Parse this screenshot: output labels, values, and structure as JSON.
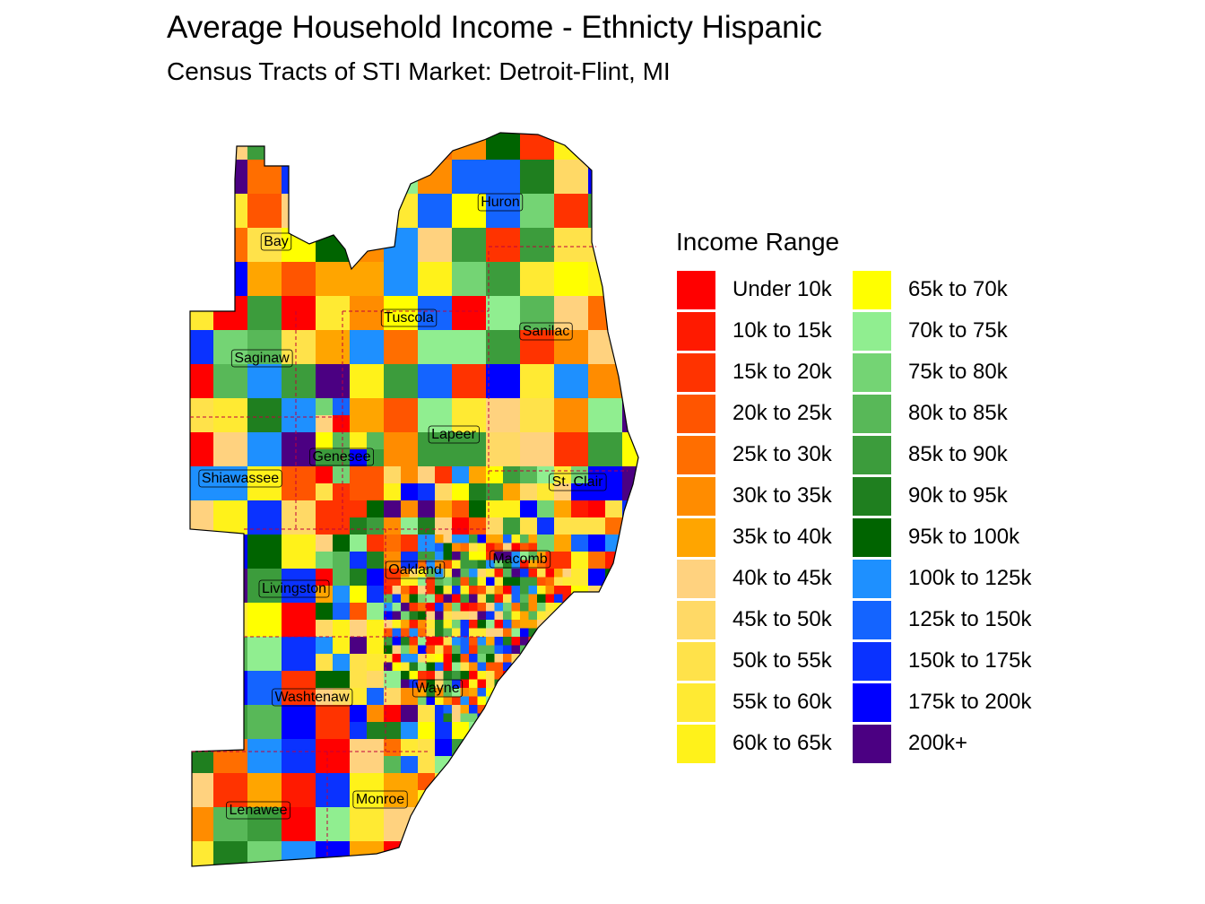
{
  "title": "Average Household Income - Ethnicty Hispanic",
  "subtitle": "Census Tracts of STI Market: Detroit-Flint, MI",
  "legend": {
    "title": "Income Range",
    "items": [
      {
        "label": "Under 10k",
        "color": "#FF0000"
      },
      {
        "label": "10k to 15k",
        "color": "#FF1A00"
      },
      {
        "label": "15k to 20k",
        "color": "#FF3300"
      },
      {
        "label": "20k to 25k",
        "color": "#FF5500"
      },
      {
        "label": "25k to 30k",
        "color": "#FF6E00"
      },
      {
        "label": "30k to 35k",
        "color": "#FF8C00"
      },
      {
        "label": "35k to 40k",
        "color": "#FFA500"
      },
      {
        "label": "40k to 45k",
        "color": "#FFD27F"
      },
      {
        "label": "45k to 50k",
        "color": "#FFD966"
      },
      {
        "label": "50k to 55k",
        "color": "#FFE24A"
      },
      {
        "label": "55k to 60k",
        "color": "#FFEA33"
      },
      {
        "label": "60k to 65k",
        "color": "#FFF21A"
      },
      {
        "label": "65k to 70k",
        "color": "#FFFF00"
      },
      {
        "label": "70k to 75k",
        "color": "#90EE90"
      },
      {
        "label": "75k to 80k",
        "color": "#74D474"
      },
      {
        "label": "80k to 85k",
        "color": "#58B858"
      },
      {
        "label": "85k to 90k",
        "color": "#3C9C3C"
      },
      {
        "label": "90k to 95k",
        "color": "#1F7F1F"
      },
      {
        "label": "95k to 100k",
        "color": "#006400"
      },
      {
        "label": "100k to 125k",
        "color": "#1E90FF"
      },
      {
        "label": "125k to 150k",
        "color": "#1464FF"
      },
      {
        "label": "150k to 175k",
        "color": "#0A32FF"
      },
      {
        "label": "175k to 200k",
        "color": "#0000FF"
      },
      {
        "label": "200k+",
        "color": "#4B0082"
      }
    ]
  },
  "counties": [
    {
      "name": "Huron"
    },
    {
      "name": "Bay"
    },
    {
      "name": "Tuscola"
    },
    {
      "name": "Sanilac"
    },
    {
      "name": "Saginaw"
    },
    {
      "name": "Lapeer"
    },
    {
      "name": "Genesee"
    },
    {
      "name": "Shiawassee"
    },
    {
      "name": "St. Clair"
    },
    {
      "name": "Macomb"
    },
    {
      "name": "Oakland"
    },
    {
      "name": "Livingston"
    },
    {
      "name": "Wayne"
    },
    {
      "name": "Washtenaw"
    },
    {
      "name": "Monroe"
    },
    {
      "name": "Lenawee"
    }
  ]
}
